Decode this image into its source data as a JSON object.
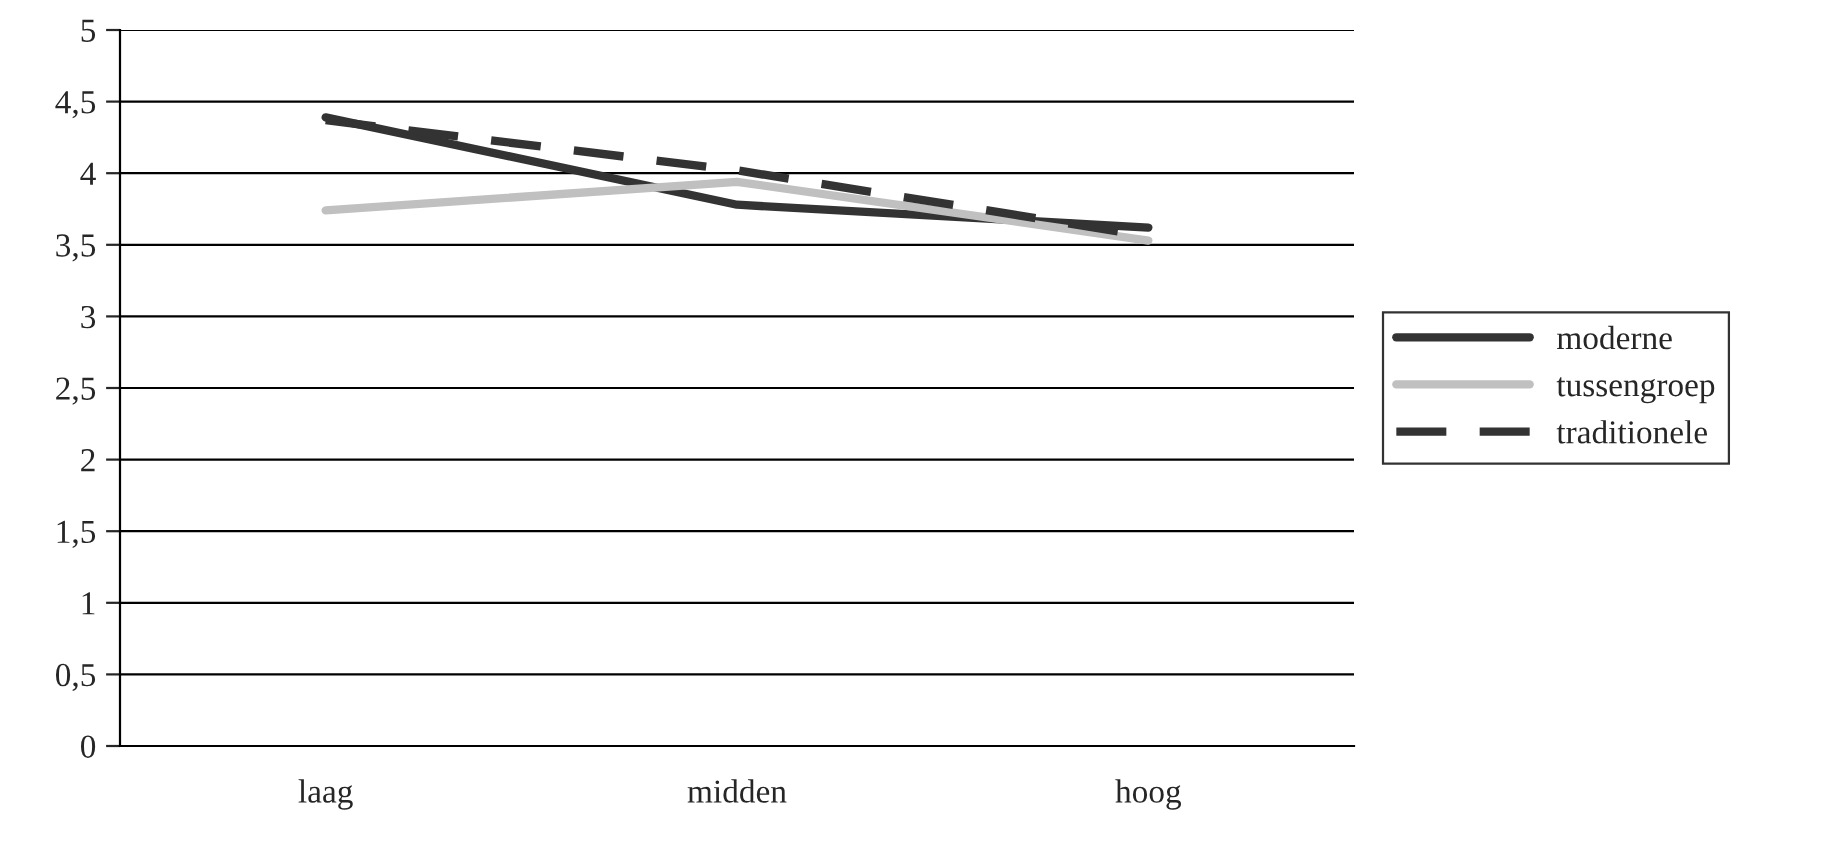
{
  "chart_data": {
    "type": "line",
    "categories": [
      "laag",
      "midden",
      "hoog"
    ],
    "series": [
      {
        "name": "moderne",
        "color": "#333333",
        "values": [
          4.39,
          3.78,
          3.62
        ],
        "line_style": "solid"
      },
      {
        "name": "tussengroep",
        "color": "#c0c0c0",
        "values": [
          3.74,
          3.94,
          3.53
        ],
        "line_style": "solid"
      },
      {
        "name": "traditionele",
        "color": "#333333",
        "values": [
          4.37,
          4.02,
          3.56
        ],
        "line_style": "dashed"
      }
    ],
    "ylim": [
      0,
      5
    ],
    "yticks": [
      0,
      {
        "value": 0.5,
        "label": "0,5"
      },
      1,
      {
        "value": 1.5,
        "label": "1,5"
      },
      2,
      {
        "value": 2.5,
        "label": "2,5"
      },
      3,
      {
        "value": 3.5,
        "label": "3,5"
      },
      4,
      {
        "value": 4.5,
        "label": "4,5"
      },
      5
    ],
    "grid": "y",
    "legend": "right",
    "marker": "none"
  }
}
